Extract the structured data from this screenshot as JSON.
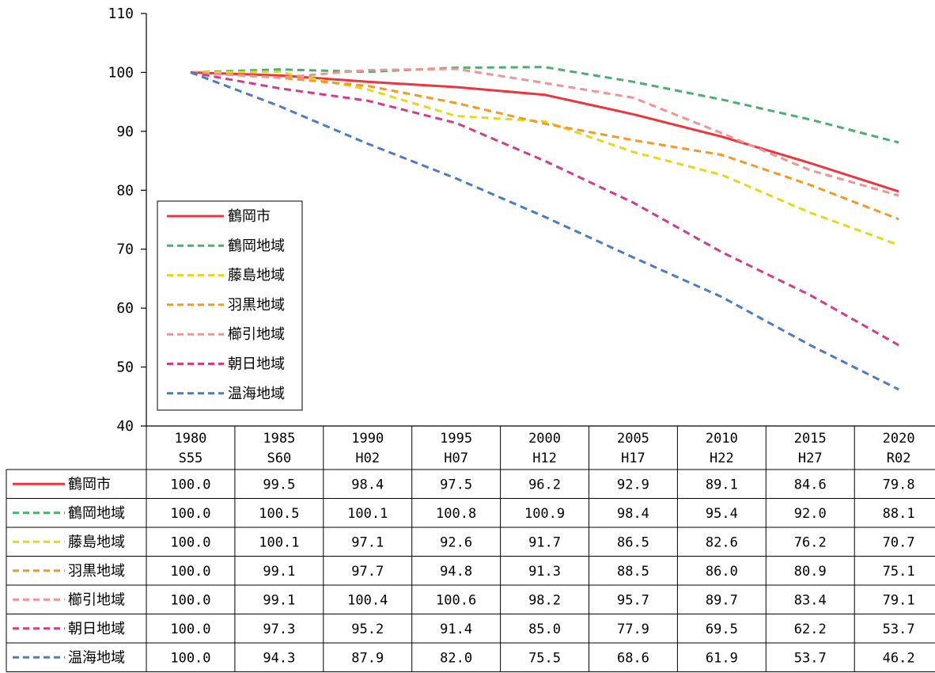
{
  "chart_data": {
    "type": "line",
    "title": "",
    "xlabel": "",
    "ylabel": "",
    "ylim": [
      40,
      110
    ],
    "yticks": [
      40,
      50,
      60,
      70,
      80,
      90,
      100,
      110
    ],
    "grid": false,
    "legend_position": "left",
    "categories": [
      {
        "year": "1980",
        "era": "S55"
      },
      {
        "year": "1985",
        "era": "S60"
      },
      {
        "year": "1990",
        "era": "H02"
      },
      {
        "year": "1995",
        "era": "H07"
      },
      {
        "year": "2000",
        "era": "H12"
      },
      {
        "year": "2005",
        "era": "H17"
      },
      {
        "year": "2010",
        "era": "H22"
      },
      {
        "year": "2015",
        "era": "H27"
      },
      {
        "year": "2020",
        "era": "R02"
      }
    ],
    "series": [
      {
        "name": "鶴岡市",
        "color": "#e8373f",
        "dashed": false,
        "values": [
          100.0,
          99.5,
          98.4,
          97.5,
          96.2,
          92.9,
          89.1,
          84.6,
          79.8
        ],
        "labels": [
          "100.0",
          "99.5",
          "98.4",
          "97.5",
          "96.2",
          "92.9",
          "89.1",
          "84.6",
          "79.8"
        ]
      },
      {
        "name": "鶴岡地域",
        "color": "#4daf6e",
        "dashed": true,
        "values": [
          100.0,
          100.5,
          100.1,
          100.8,
          100.9,
          98.4,
          95.4,
          92.0,
          88.1
        ],
        "labels": [
          "100.0",
          "100.5",
          "100.1",
          "100.8",
          "100.9",
          "98.4",
          "95.4",
          "92.0",
          "88.1"
        ]
      },
      {
        "name": "藤島地域",
        "color": "#e3d91a",
        "dashed": true,
        "values": [
          100.0,
          100.1,
          97.1,
          92.6,
          91.7,
          86.5,
          82.6,
          76.2,
          70.7
        ],
        "labels": [
          "100.0",
          "100.1",
          "97.1",
          "92.6",
          "91.7",
          "86.5",
          "82.6",
          "76.2",
          "70.7"
        ]
      },
      {
        "name": "羽黒地域",
        "color": "#f39a26",
        "dashed": true,
        "values": [
          100.0,
          99.1,
          97.7,
          94.8,
          91.3,
          88.5,
          86.0,
          80.9,
          75.1
        ],
        "labels": [
          "100.0",
          "99.1",
          "97.7",
          "94.8",
          "91.3",
          "88.5",
          "86.0",
          "80.9",
          "75.1"
        ]
      },
      {
        "name": "櫛引地域",
        "color": "#f29494",
        "dashed": true,
        "values": [
          100.0,
          99.1,
          100.4,
          100.6,
          98.2,
          95.7,
          89.7,
          83.4,
          79.1
        ],
        "labels": [
          "100.0",
          "99.1",
          "100.4",
          "100.6",
          "98.2",
          "95.7",
          "89.7",
          "83.4",
          "79.1"
        ]
      },
      {
        "name": "朝日地域",
        "color": "#d23c8a",
        "dashed": true,
        "values": [
          100.0,
          97.3,
          95.2,
          91.4,
          85.0,
          77.9,
          69.5,
          62.2,
          53.7
        ],
        "labels": [
          "100.0",
          "97.3",
          "95.2",
          "91.4",
          "85.0",
          "77.9",
          "69.5",
          "62.2",
          "53.7"
        ]
      },
      {
        "name": "温海地域",
        "color": "#4a7cc6",
        "dashed": true,
        "values": [
          100.0,
          94.3,
          87.9,
          82.0,
          75.5,
          68.6,
          61.9,
          53.7,
          46.2
        ],
        "labels": [
          "100.0",
          "94.3",
          "87.9",
          "82.0",
          "75.5",
          "68.6",
          "61.9",
          "53.7",
          "46.2"
        ]
      }
    ]
  }
}
